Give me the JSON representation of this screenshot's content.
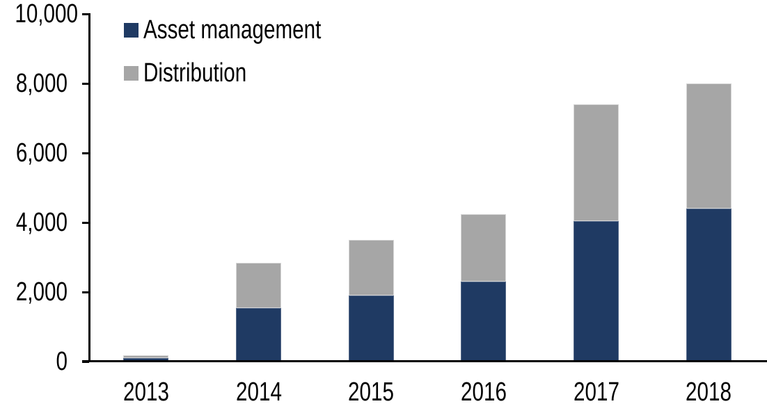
{
  "chart": {
    "background_color": "#ffffff",
    "axis_color": "#000000",
    "text_color": "#000000"
  },
  "chart_data": {
    "type": "bar",
    "stacked": true,
    "title": "",
    "xlabel": "",
    "ylabel": "",
    "categories": [
      "2013",
      "2014",
      "2015",
      "2016",
      "2017",
      "2018"
    ],
    "series": [
      {
        "name": "Asset management",
        "color": "#1F3A63",
        "values": [
          100,
          1550,
          1900,
          2300,
          4050,
          4400
        ]
      },
      {
        "name": "Distribution",
        "color": "#A6A6A6",
        "values": [
          80,
          1300,
          1600,
          1950,
          3350,
          3600
        ]
      }
    ],
    "totals": [
      180,
      2850,
      3500,
      4250,
      7400,
      8000
    ],
    "ylim": [
      0,
      10000
    ],
    "ytick_interval": 2000,
    "ytick_labels": [
      "0",
      "2,000",
      "4,000",
      "6,000",
      "8,000",
      "10,000"
    ],
    "grid": false,
    "legend_position": "top-left"
  }
}
